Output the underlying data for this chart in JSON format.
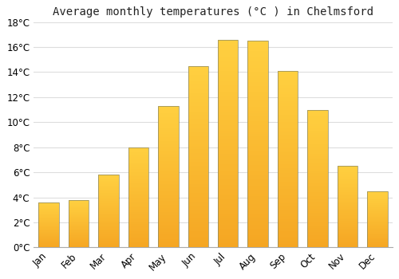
{
  "title": "Average monthly temperatures (°C ) in Chelmsford",
  "months": [
    "Jan",
    "Feb",
    "Mar",
    "Apr",
    "May",
    "Jun",
    "Jul",
    "Aug",
    "Sep",
    "Oct",
    "Nov",
    "Dec"
  ],
  "values": [
    3.6,
    3.8,
    5.8,
    8.0,
    11.3,
    14.5,
    16.6,
    16.5,
    14.1,
    11.0,
    6.5,
    4.5
  ],
  "bar_color_bottom": "#F5A623",
  "bar_color_top": "#FFD040",
  "bar_edge_color": "#888866",
  "background_color": "#ffffff",
  "plot_bg_color": "#ffffff",
  "ylim": [
    0,
    18
  ],
  "ytick_step": 2,
  "title_fontsize": 10,
  "tick_fontsize": 8.5,
  "grid_color": "#dddddd"
}
